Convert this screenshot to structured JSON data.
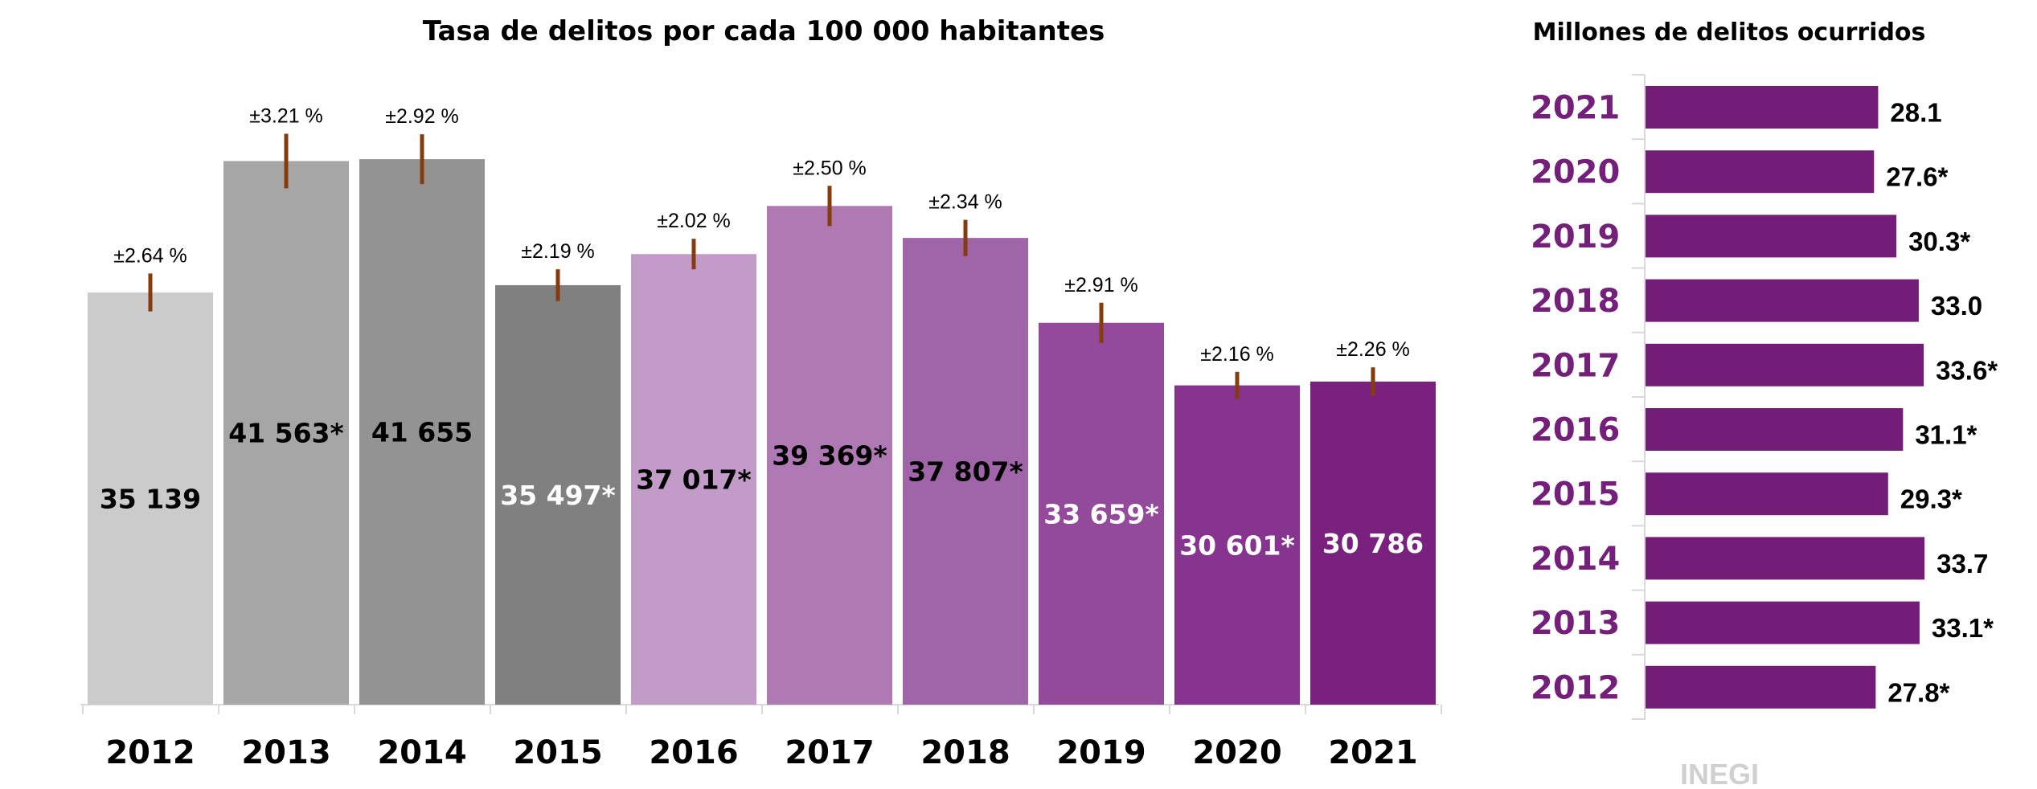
{
  "chart_data": [
    {
      "type": "bar",
      "title": "Tasa de delitos por cada 100 000 habitantes",
      "categories": [
        "2012",
        "2013",
        "2014",
        "2015",
        "2016",
        "2017",
        "2018",
        "2019",
        "2020",
        "2021"
      ],
      "values": [
        35139,
        41563,
        41655,
        35497,
        37017,
        39369,
        37807,
        33659,
        30601,
        30786
      ],
      "value_labels": [
        "35 139",
        "41 563*",
        "41 655",
        "35 497*",
        "37 017*",
        "39 369*",
        "37 807*",
        "33 659*",
        "30 601*",
        "30 786"
      ],
      "error_percent": [
        2.64,
        3.21,
        2.92,
        2.19,
        2.02,
        2.5,
        2.34,
        2.91,
        2.16,
        2.26
      ],
      "error_labels": [
        "±2.64 %",
        "±3.21 %",
        "±2.92 %",
        "±2.19 %",
        "±2.02 %",
        "±2.50 %",
        "±2.34 %",
        "±2.91 %",
        "±2.16 %",
        "±2.26 %"
      ],
      "colors": [
        "#cbcbcb",
        "#a6a6a6",
        "#939393",
        "#808080",
        "#c39bc9",
        "#af79b4",
        "#a064a8",
        "#934a9a",
        "#86348f",
        "#7a2180"
      ],
      "label_colors": [
        "#000000",
        "#000000",
        "#000000",
        "#ffffff",
        "#000000",
        "#000000",
        "#000000",
        "#ffffff",
        "#ffffff",
        "#ffffff"
      ],
      "error_bar_color": "#843c0c",
      "ylim": [
        15000,
        45000
      ],
      "grid": false,
      "xlabel": "",
      "ylabel": ""
    },
    {
      "type": "bar",
      "orientation": "horizontal",
      "title": "Millones de delitos ocurridos",
      "categories": [
        "2021",
        "2020",
        "2019",
        "2018",
        "2017",
        "2016",
        "2015",
        "2014",
        "2013",
        "2012"
      ],
      "values": [
        28.1,
        27.6,
        30.3,
        33.0,
        33.6,
        31.1,
        29.3,
        33.7,
        33.1,
        27.8
      ],
      "value_labels": [
        "28.1",
        "27.6*",
        "30.3*",
        "33.0",
        "33.6*",
        "31.1*",
        "29.3*",
        "33.7",
        "33.1*",
        "27.8*"
      ],
      "bar_color": "#731d78",
      "category_label_color": "#74207b",
      "xlim": [
        0,
        40
      ],
      "grid": false
    }
  ],
  "logo": "INEGI"
}
